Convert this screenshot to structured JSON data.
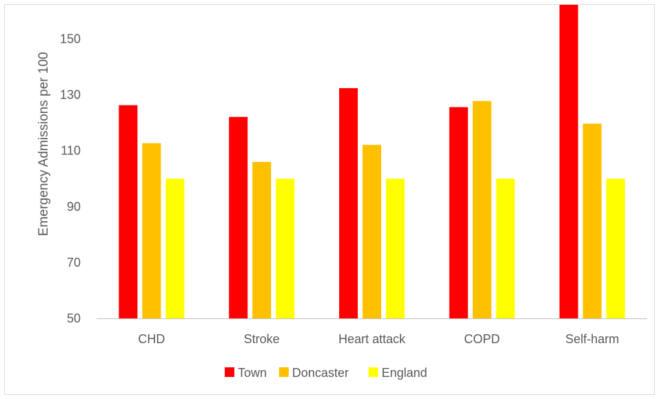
{
  "chart_data": {
    "type": "bar",
    "title": "",
    "xlabel": "",
    "ylabel": "Emergency Admissions per 100",
    "categories": [
      "CHD",
      "Stroke",
      "Heart attack",
      "COPD",
      "Self-harm"
    ],
    "series": [
      {
        "name": "Town",
        "color": "#ff0000",
        "values": [
          126.3,
          122.1,
          132.4,
          125.6,
          163.8
        ]
      },
      {
        "name": "Doncaster",
        "color": "#ffc000",
        "values": [
          112.7,
          106.0,
          112.1,
          127.8,
          119.7
        ]
      },
      {
        "name": "England",
        "color": "#ffff00",
        "values": [
          100,
          100,
          100,
          100,
          100
        ]
      }
    ],
    "ylim": [
      50,
      160
    ],
    "yticks": [
      50,
      70,
      90,
      110,
      130,
      150
    ],
    "grid": false,
    "legend": "bottom"
  }
}
